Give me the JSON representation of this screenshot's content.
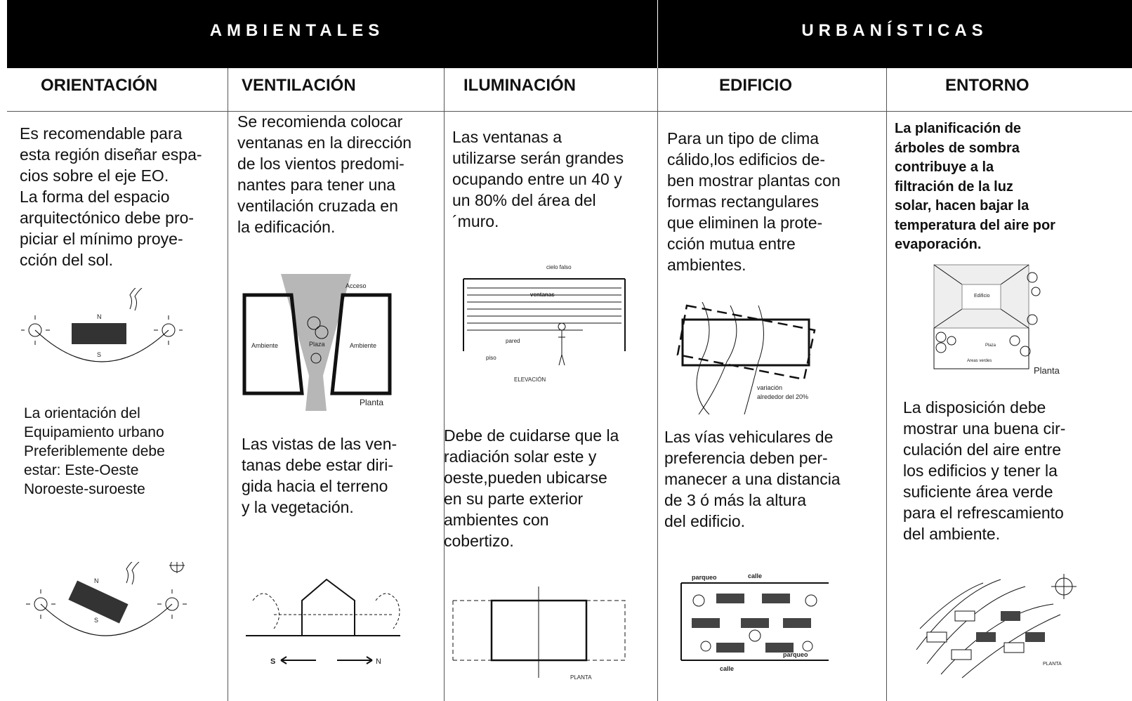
{
  "header": {
    "sections": [
      "AMBIENTALES",
      "URBANÍSTICAS"
    ]
  },
  "columns": [
    {
      "title": "ORIENTACIÓN",
      "text1": [
        "Es recomendable para",
        "esta región diseñar espa-",
        "cios sobre el eje EO.",
        "La forma del espacio",
        "arquitectónico debe pro-",
        "piciar el mínimo proye-",
        "cción del sol."
      ],
      "sketch1": [
        "N",
        "S"
      ],
      "text2": [
        "La orientación del",
        "Equipamiento urbano",
        "Preferiblemente debe",
        "estar: Este-Oeste",
        "Noroeste-suroeste"
      ],
      "sketch2": [
        "N",
        "S"
      ]
    },
    {
      "title": "VENTILACIÓN",
      "text1": [
        "Se recomienda colocar",
        "ventanas en la dirección",
        "de los vientos predomi-",
        "nantes para tener una",
        "ventilación cruzada en",
        "la edificación."
      ],
      "sketch1": [
        "Acceso",
        "Ambiente",
        "Plaza",
        "Ambiente",
        "Planta"
      ],
      "text2": [
        "Las vistas de las ven-",
        "tanas debe estar diri-",
        "gida hacia el terreno",
        "y la vegetación."
      ],
      "sketch2": [
        "S",
        "N"
      ]
    },
    {
      "title": "ILUMINACIÓN",
      "text1": [
        "Las ventanas a",
        "utilizarse serán grandes",
        "ocupando entre un 40 y",
        "un 80% del área del",
        "´muro."
      ],
      "sketch1": [
        "cielo falso",
        "ventanas",
        "pared",
        "piso",
        "ELEVACIÓN"
      ],
      "text2": [
        "Debe de cuidarse que la",
        "radiación solar este y",
        "oeste,pueden ubicarse",
        "en su parte exterior",
        "ambientes con",
        "cobertizo."
      ],
      "sketch2": [
        "PLANTA"
      ]
    },
    {
      "title": "EDIFICIO",
      "text1": [
        "Para un tipo de clima",
        "cálido,los edificios de-",
        "ben mostrar plantas con",
        "formas rectangulares",
        "que eliminen la prote-",
        "cción mutua entre",
        "ambientes."
      ],
      "sketch1": [
        "variación",
        "alrededor del 20%"
      ],
      "text2": [
        "Las vías vehiculares de",
        "preferencia deben per-",
        "manecer a una distancia",
        "de 3 ó más la altura",
        "del edificio."
      ],
      "sketch2": [
        "parqueo",
        "calle",
        "parqueo",
        "calle"
      ]
    },
    {
      "title": "ENTORNO",
      "text1": [
        "La planificación de",
        "árboles de sombra",
        "contribuye a la",
        "filtración de la luz",
        "solar, hacen bajar la",
        "temperatura del aire por",
        "evaporación."
      ],
      "sketch1": [
        "Edificio",
        "Plaza",
        "Areas verdes",
        "Planta"
      ],
      "text2": [
        "La disposición debe",
        "mostrar una buena cir-",
        "culación del aire entre",
        "los edificios y tener la",
        "suficiente área verde",
        "para el refrescamiento",
        "del ambiente."
      ],
      "sketch2": [
        "PLANTA"
      ]
    }
  ]
}
